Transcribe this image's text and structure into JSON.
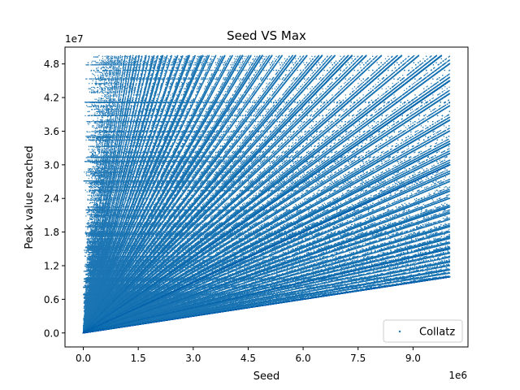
{
  "chart_data": {
    "type": "scatter",
    "title": "Seed VS Max",
    "xlabel": "Seed",
    "ylabel": "Peak value reached",
    "x_offset_text": "1e6",
    "y_offset_text": "1e7",
    "xlim": [
      -500000,
      10500000
    ],
    "ylim": [
      -2500000,
      51000000
    ],
    "x_ticks": [
      0,
      1500000,
      3000000,
      4500000,
      6000000,
      7500000,
      9000000
    ],
    "x_tick_labels": [
      "0.0",
      "1.5",
      "3.0",
      "4.5",
      "6.0",
      "7.5",
      "9.0"
    ],
    "y_ticks": [
      0,
      6000000,
      12000000,
      18000000,
      24000000,
      30000000,
      36000000,
      42000000,
      48000000
    ],
    "y_tick_labels": [
      "0.0",
      "0.6",
      "1.2",
      "1.8",
      "2.4",
      "3.0",
      "3.6",
      "4.2",
      "4.8"
    ],
    "grid": false,
    "legend_position": "lower-right",
    "series": [
      {
        "name": "Collatz",
        "color": "#1f77b4",
        "marker": "point",
        "x_range": [
          1,
          10000000
        ],
        "y_cap": 49500000,
        "lower_envelope": [
          [
            0,
            0
          ],
          [
            10000000,
            10000000
          ]
        ],
        "points": [
          [
            27,
            9232
          ],
          [
            703,
            250504
          ],
          [
            1000000,
            4700000
          ],
          [
            2000000,
            2000000
          ],
          [
            5000000,
            5000000
          ],
          [
            8400511,
            48400000
          ],
          [
            10000000,
            10000000
          ],
          [
            9975000,
            49500000
          ]
        ]
      }
    ]
  }
}
